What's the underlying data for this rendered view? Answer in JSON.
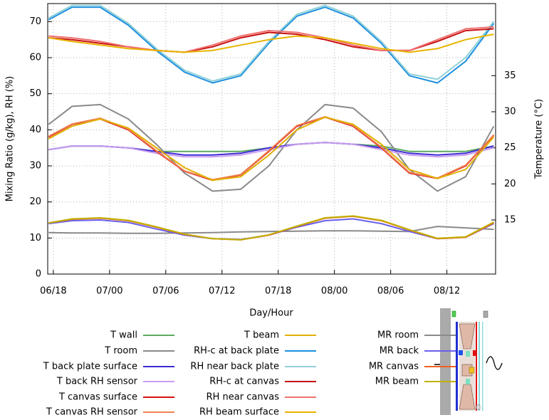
{
  "chart_data": {
    "type": "line",
    "xlabel": "Day/Hour",
    "ylabel": "Mixing Ratio (g/kg), RH (%)",
    "y2label": "Temperature (°C)",
    "x": [
      17.5,
      20,
      23,
      26,
      29,
      32,
      35,
      38,
      41,
      44,
      47,
      50,
      53,
      56,
      59,
      62,
      65
    ],
    "xlim": [
      17.4,
      65.2
    ],
    "xticks": [
      {
        "value": 18,
        "label": "06/18"
      },
      {
        "value": 24,
        "label": "07/00"
      },
      {
        "value": 30,
        "label": "07/06"
      },
      {
        "value": 36,
        "label": "07/12"
      },
      {
        "value": 42,
        "label": "07/18"
      },
      {
        "value": 48,
        "label": "08/00"
      },
      {
        "value": 54,
        "label": "08/06"
      },
      {
        "value": 60,
        "label": "08/12"
      }
    ],
    "ylim": [
      0,
      75
    ],
    "yticks": [
      0,
      10,
      20,
      30,
      40,
      50,
      60,
      70
    ],
    "y2lim": [
      7.5,
      45
    ],
    "y2ticks": [
      15,
      20,
      25,
      30,
      35
    ],
    "grid": true,
    "series": [
      {
        "name": "T wall",
        "color": "#5aaa60",
        "axis": "y2",
        "values": [
          24.75,
          25.25,
          25.25,
          25,
          24.5,
          24.5,
          24.5,
          24.5,
          25,
          25.5,
          25.75,
          25.5,
          25.25,
          24.5,
          24.5,
          24.5,
          25.25
        ]
      },
      {
        "name": "T room",
        "color": "#8a8a8a",
        "axis": "y2",
        "values": [
          28.25,
          30.75,
          31,
          29,
          25.5,
          21.5,
          19,
          19.25,
          22.5,
          27.5,
          31,
          30.5,
          27.25,
          22,
          19,
          21,
          28
        ]
      },
      {
        "name": "T back plate surface",
        "color": "#3d2bd6",
        "axis": "y2",
        "values": [
          24.75,
          25.25,
          25.25,
          25,
          24.5,
          24,
          24,
          24.25,
          25,
          25.5,
          25.75,
          25.5,
          25,
          24.25,
          24,
          24.25,
          25.25
        ]
      },
      {
        "name": "T back RH sensor",
        "color": "#c89cf0",
        "axis": "y2",
        "values": [
          24.75,
          25.25,
          25.25,
          25,
          24.25,
          23.75,
          23.75,
          24,
          24.75,
          25.5,
          25.75,
          25.5,
          24.75,
          24,
          23.75,
          24,
          25
        ]
      },
      {
        "name": "T canvas surface",
        "color": "#d81010",
        "axis": "y2",
        "values": [
          26.5,
          28.25,
          29,
          27.5,
          24.5,
          21.75,
          20.5,
          21.25,
          24.5,
          28,
          29.25,
          28,
          25,
          21.5,
          20.75,
          22.5,
          26.75
        ]
      },
      {
        "name": "T canvas RH sensor",
        "color": "#f08050",
        "axis": "y2",
        "values": [
          26.6,
          28.3,
          29.1,
          27.6,
          24.6,
          21.8,
          20.6,
          21.3,
          24.6,
          28.1,
          29.3,
          28.1,
          25.1,
          21.6,
          20.8,
          22.6,
          26.8
        ]
      },
      {
        "name": "T beam",
        "color": "#e0b000",
        "axis": "y2",
        "values": [
          26.25,
          28,
          29,
          27.75,
          25,
          22.25,
          20.5,
          21,
          24,
          27.5,
          29.25,
          28.25,
          25.5,
          22,
          20.75,
          22,
          26.5
        ]
      },
      {
        "name": "RH-c at back plate",
        "color": "#1e90e0",
        "values": [
          70.5,
          74,
          74,
          69,
          62,
          56,
          53,
          55,
          64,
          71.5,
          74,
          71,
          64,
          55,
          53,
          59,
          69.5
        ]
      },
      {
        "name": "RH near back plate",
        "color": "#90d0d8",
        "values": [
          71,
          74.5,
          74.5,
          69.5,
          62.5,
          56.5,
          53.5,
          55.5,
          64.5,
          72,
          74.5,
          71.5,
          64.5,
          55.5,
          54,
          60,
          70
        ]
      },
      {
        "name": "RH-c at canvas",
        "color": "#c81010",
        "values": [
          65.5,
          65,
          64,
          63,
          62,
          61.5,
          63,
          65.5,
          67,
          66.5,
          65,
          63,
          62,
          62,
          64.5,
          67.5,
          68
        ]
      },
      {
        "name": "RH near canvas",
        "color": "#f07070",
        "values": [
          66,
          65.5,
          64.5,
          63,
          62,
          61.5,
          63.5,
          66,
          67.5,
          67,
          65.5,
          63.5,
          62,
          62,
          65,
          68,
          68.5
        ]
      },
      {
        "name": "RH beam surface",
        "color": "#e8b400",
        "values": [
          65.5,
          64.5,
          63.5,
          62.5,
          62,
          61.5,
          62,
          63.5,
          65,
          66,
          65.5,
          64,
          62.5,
          61.5,
          62.5,
          65,
          66.5
        ]
      },
      {
        "name": "MR room",
        "color": "#8a8a8a",
        "values": [
          11.5,
          11.4,
          11.4,
          11.3,
          11.3,
          11.4,
          11.5,
          11.7,
          11.8,
          11.9,
          12,
          12,
          11.9,
          11.8,
          13.2,
          12.8,
          12.4
        ]
      },
      {
        "name": "MR back",
        "color": "#6a60e8",
        "values": [
          14,
          14.8,
          15,
          14.3,
          12.5,
          10.8,
          9.8,
          9.6,
          10.8,
          13,
          14.8,
          15.3,
          14,
          11.8,
          9.8,
          10.2,
          14
        ]
      },
      {
        "name": "MR canvas",
        "color": "#f06020",
        "values": [
          14.2,
          15.2,
          15.5,
          14.8,
          13,
          11,
          9.8,
          9.5,
          10.8,
          13.2,
          15.5,
          16,
          14.8,
          12.2,
          9.8,
          10.2,
          14.2
        ]
      },
      {
        "name": "MR beam",
        "color": "#c0b000",
        "values": [
          14.2,
          15.3,
          15.6,
          14.9,
          13.1,
          11.1,
          9.8,
          9.5,
          10.9,
          13.3,
          15.6,
          16.1,
          14.9,
          12.3,
          9.9,
          10.3,
          14.4
        ]
      }
    ]
  }
}
